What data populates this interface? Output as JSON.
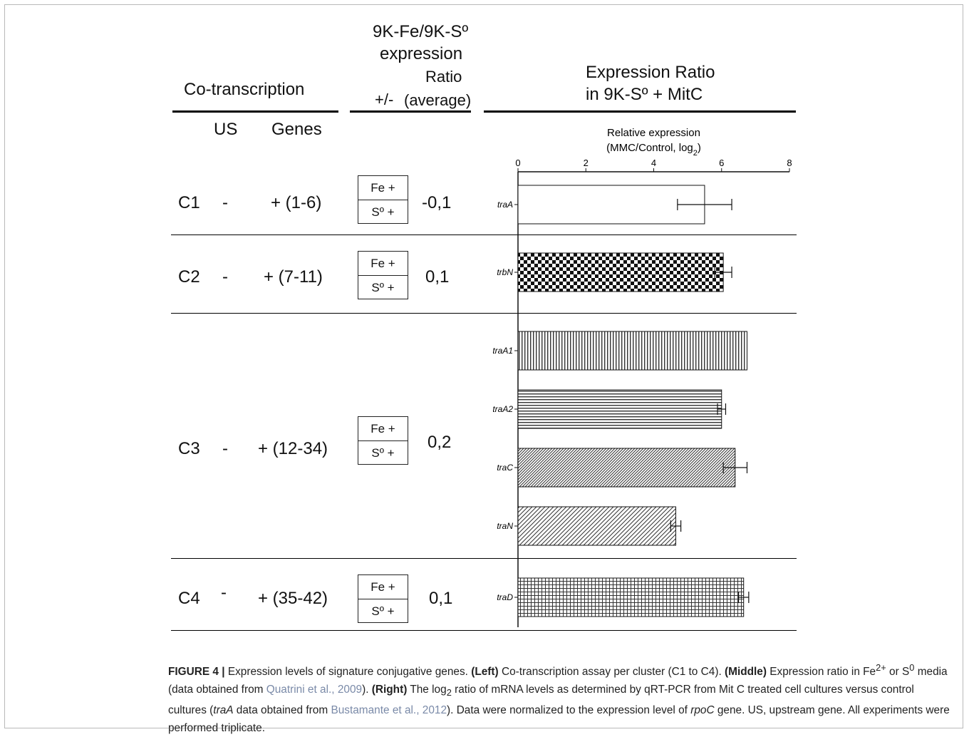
{
  "left": {
    "header": "Co-transcription",
    "col_us": "US",
    "col_genes": "Genes"
  },
  "middle": {
    "header_line1": "9K-Fe/9K-Sº",
    "header_line2": "expression",
    "header_ratio": "Ratio",
    "header_pm": "+/-",
    "header_avg": "(average)"
  },
  "right": {
    "header_line1": "Expression Ratio",
    "header_line2": "in 9K-Sº + MitC"
  },
  "rows": [
    {
      "cluster": "C1",
      "us": "-",
      "genes": "+ (1-6)",
      "fe": "Fe +",
      "s": "Sº +",
      "ratio": "-0,1"
    },
    {
      "cluster": "C2",
      "us": "-",
      "genes": "+ (7-11)",
      "fe": "Fe +",
      "s": "Sº +",
      "ratio": "0,1"
    },
    {
      "cluster": "C3",
      "us": "-",
      "genes": "+ (12-34)",
      "fe": "Fe +",
      "s": "Sº +",
      "ratio": "0,2"
    },
    {
      "cluster": "C4",
      "us": "-",
      "genes": "+ (35-42)",
      "fe": "Fe +",
      "s": "Sº +",
      "ratio": "0,1"
    }
  ],
  "chart_data": {
    "type": "bar",
    "orientation": "horizontal",
    "title_line1": "Relative expression",
    "title_line2": "(MMC/Control, log",
    "title_sub": "2",
    "title_close": ")",
    "xlim": [
      0,
      8
    ],
    "xticks": [
      "0",
      "2",
      "4",
      "6",
      "8"
    ],
    "categories": [
      "traA",
      "trbN",
      "traA1",
      "traA2",
      "traC",
      "traN",
      "traD"
    ],
    "values": [
      5.5,
      6.05,
      6.75,
      6.0,
      6.4,
      4.65,
      6.65
    ],
    "errors": [
      0.8,
      0.25,
      0.0,
      0.12,
      0.35,
      0.15,
      0.15
    ],
    "patterns": [
      "none",
      "checker",
      "vertical",
      "horizontal",
      "diag-dense",
      "diag",
      "grid"
    ]
  },
  "caption": {
    "label": "FIGURE 4 |",
    "t1": " Expression levels of signature conjugative genes. ",
    "left": "(Left)",
    "t2": " Co-transcription assay per cluster (C1 to C4). ",
    "middle": "(Middle)",
    "t3": " Expression ratio in Fe",
    "sup1": "2+",
    "t4": " or S",
    "sup2": "0",
    "t5": " media (data obtained from ",
    "ref1": "Quatrini et al., 2009",
    "t6": "). ",
    "right": "(Right)",
    "t7": " The log",
    "sub1": "2",
    "t8": " ratio of mRNA levels as determined by qRT-PCR from Mit C treated cell cultures versus control cultures (",
    "it1": "traA",
    "t9": " data obtained from ",
    "ref2": "Bustamante et al., 2012",
    "t10": "). Data were normalized to the expression level of ",
    "it2": "rpoC",
    "t11": " gene. US, upstream gene. All experiments were performed triplicate."
  }
}
